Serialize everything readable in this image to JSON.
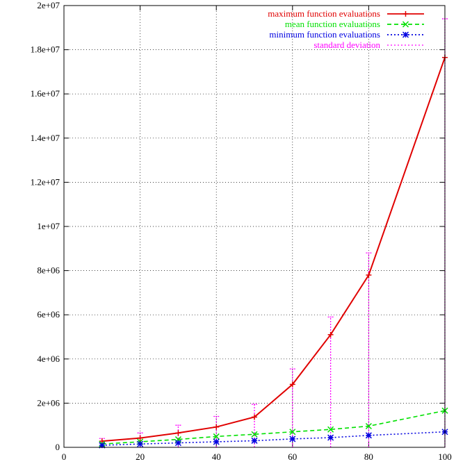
{
  "chart_data": {
    "type": "line",
    "title": "",
    "xlabel": "",
    "ylabel": "",
    "xlim": [
      0,
      100
    ],
    "ylim": [
      0,
      20000000
    ],
    "x_ticks": [
      0,
      20,
      40,
      60,
      80,
      100
    ],
    "x_tick_labels": [
      "0",
      "20",
      "40",
      "60",
      "80",
      "100"
    ],
    "y_ticks": [
      0,
      2000000,
      4000000,
      6000000,
      8000000,
      10000000,
      12000000,
      14000000,
      16000000,
      18000000,
      20000000
    ],
    "y_tick_labels": [
      "0",
      "2e+06",
      "4e+06",
      "6e+06",
      "8e+06",
      "1e+07",
      "1.2e+07",
      "1.4e+07",
      "1.6e+07",
      "1.8e+07",
      "2e+07"
    ],
    "grid": true,
    "legend_position": "top-right",
    "x": [
      10,
      20,
      30,
      40,
      50,
      60,
      70,
      80,
      100
    ],
    "series": [
      {
        "name": "maximum function evaluations",
        "color": "#e00000",
        "style": "solid",
        "marker": "plus",
        "values": [
          280000,
          420000,
          650000,
          920000,
          1370000,
          2850000,
          5100000,
          7800000,
          17650000
        ]
      },
      {
        "name": "mean function evaluations",
        "color": "#00e000",
        "style": "dashed",
        "marker": "cross",
        "values": [
          150000,
          250000,
          360000,
          490000,
          590000,
          700000,
          810000,
          960000,
          1660000
        ]
      },
      {
        "name": "minimum function evaluations",
        "color": "#0000e0",
        "style": "dotted",
        "marker": "star",
        "values": [
          90000,
          150000,
          200000,
          250000,
          300000,
          380000,
          440000,
          540000,
          700000
        ]
      }
    ],
    "error_series": {
      "name": "standard deviation",
      "color": "#ff00ff",
      "style": "dotted",
      "center": [
        150000,
        250000,
        360000,
        490000,
        590000,
        700000,
        810000,
        960000,
        1660000
      ],
      "low": [
        0,
        0,
        0,
        0,
        0,
        0,
        0,
        0,
        0
      ],
      "high": [
        400000,
        650000,
        1000000,
        1400000,
        1950000,
        3550000,
        5900000,
        8800000,
        19400000
      ]
    }
  }
}
